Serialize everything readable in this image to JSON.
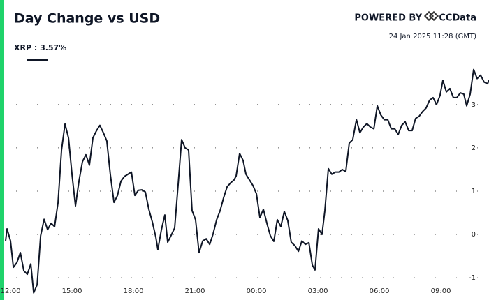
{
  "chart_data": {
    "type": "line",
    "title": "Day Change vs USD",
    "powered_by": "POWERED BY",
    "brand": "CCData",
    "timestamp": "24 Jan 2025 11:28 (GMT)",
    "x": [
      -0.24,
      -0.17,
      0,
      0.14,
      0.31,
      0.48,
      0.65,
      0.82,
      0.99,
      1.13,
      1.3,
      1.47,
      1.64,
      1.81,
      1.98,
      2.15,
      2.32,
      2.49,
      2.66,
      2.83,
      3.0,
      3.17,
      3.34,
      3.51,
      3.68,
      3.85,
      4.02,
      4.19,
      4.36,
      4.53,
      4.7,
      4.87,
      5.05,
      5.22,
      5.39,
      5.56,
      5.73,
      5.9,
      6.07,
      6.24,
      6.41,
      6.58,
      6.75,
      6.92,
      7.09,
      7.19,
      7.36,
      7.53,
      7.67,
      7.84,
      8.01,
      8.18,
      8.35,
      8.52,
      8.69,
      8.86,
      9.03,
      9.2,
      9.38,
      9.55,
      9.72,
      9.89,
      10.06,
      10.23,
      10.4,
      10.57,
      10.74,
      10.91,
      11.01,
      11.18,
      11.35,
      11.49,
      11.66,
      11.83,
      12.0,
      12.17,
      12.34,
      12.51,
      12.68,
      12.85,
      13.02,
      13.19,
      13.36,
      13.53,
      13.7,
      13.88,
      14.05,
      14.22,
      14.39,
      14.56,
      14.73,
      14.86,
      15.03,
      15.2,
      15.34,
      15.51,
      15.68,
      15.85,
      16.02,
      16.19,
      16.36,
      16.53,
      16.7,
      16.88,
      17.05,
      17.22,
      17.39,
      17.56,
      17.73,
      17.9,
      18.07,
      18.24,
      18.41,
      18.58,
      18.75,
      18.92,
      19.09,
      19.26,
      19.43,
      19.6,
      19.77,
      19.94,
      20.11,
      20.28,
      20.45,
      20.62,
      20.79,
      20.96,
      21.1,
      21.27,
      21.44,
      21.61,
      21.78,
      21.95,
      22.12,
      22.26,
      22.43,
      22.6,
      22.77,
      22.94,
      23.11,
      23.28,
      23.35
    ],
    "series": [
      {
        "name": "XRP : 3.57%",
        "color": "#0f1626",
        "values": [
          -0.15,
          0.13,
          -0.15,
          -0.76,
          -0.65,
          -0.42,
          -0.84,
          -0.92,
          -0.68,
          -1.35,
          -1.16,
          -0.03,
          0.35,
          0.11,
          0.26,
          0.18,
          0.74,
          1.95,
          2.55,
          2.23,
          1.39,
          0.66,
          1.23,
          1.68,
          1.84,
          1.6,
          2.23,
          2.39,
          2.52,
          2.35,
          2.16,
          1.39,
          0.74,
          0.9,
          1.23,
          1.34,
          1.39,
          1.44,
          0.9,
          1.02,
          1.03,
          0.98,
          0.58,
          0.29,
          -0.06,
          -0.35,
          0.1,
          0.45,
          -0.18,
          -0.02,
          0.15,
          1.15,
          2.19,
          2.0,
          1.95,
          0.55,
          0.34,
          -0.42,
          -0.15,
          -0.1,
          -0.23,
          0.02,
          0.34,
          0.55,
          0.85,
          1.1,
          1.19,
          1.26,
          1.35,
          1.87,
          1.71,
          1.39,
          1.26,
          1.13,
          0.94,
          0.39,
          0.58,
          0.26,
          -0.03,
          -0.16,
          0.34,
          0.18,
          0.53,
          0.32,
          -0.18,
          -0.26,
          -0.39,
          -0.15,
          -0.23,
          -0.19,
          -0.71,
          -0.82,
          0.13,
          0.0,
          0.55,
          1.52,
          1.39,
          1.44,
          1.44,
          1.5,
          1.45,
          2.11,
          2.19,
          2.65,
          2.35,
          2.48,
          2.56,
          2.48,
          2.44,
          2.97,
          2.76,
          2.65,
          2.65,
          2.44,
          2.44,
          2.31,
          2.52,
          2.6,
          2.4,
          2.4,
          2.68,
          2.73,
          2.84,
          2.92,
          3.1,
          3.16,
          3.0,
          3.21,
          3.56,
          3.29,
          3.37,
          3.16,
          3.16,
          3.27,
          3.24,
          2.97,
          3.24,
          3.81,
          3.6,
          3.68,
          3.52,
          3.48,
          3.56
        ]
      }
    ],
    "xlim": [
      -0.24,
      23.35
    ],
    "xticks": [
      {
        "value": 0,
        "label": "12:00"
      },
      {
        "value": 3,
        "label": "15:00"
      },
      {
        "value": 6,
        "label": "18:00"
      },
      {
        "value": 9,
        "label": "21:00"
      },
      {
        "value": 12,
        "label": "00:00"
      },
      {
        "value": 15,
        "label": "03:00"
      },
      {
        "value": 18,
        "label": "06:00"
      },
      {
        "value": 21,
        "label": "09:00"
      }
    ],
    "ylim": [
      -1.45,
      3.9
    ],
    "yticks": [
      -1,
      0,
      1,
      2,
      3
    ],
    "grid": true
  }
}
